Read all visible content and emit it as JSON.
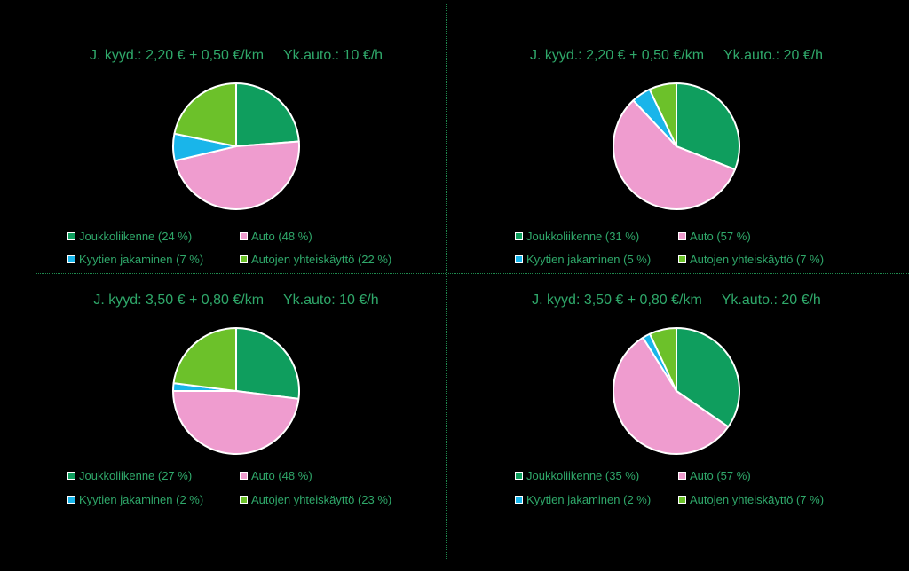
{
  "colors": {
    "joukkoliikenne": "#0f9e5e",
    "auto": "#ef9ccf",
    "kyytien": "#19b5ea",
    "autojen": "#6cc12a",
    "divider": "#1e8a4e",
    "text": "#2fa86a"
  },
  "chart_data": [
    {
      "type": "pie",
      "title": "J. kyyd.: 2,20 € + 0,50 €/km     Yk.auto.: 10 €/h",
      "slices": [
        {
          "label": "Joukkoliikenne (24 %)",
          "value": 24,
          "color": "#0f9e5e"
        },
        {
          "label": "Auto (48 %)",
          "value": 48,
          "color": "#ef9ccf"
        },
        {
          "label": "Kyytien jakaminen (7 %)",
          "value": 7,
          "color": "#19b5ea"
        },
        {
          "label": "Autojen yhteiskäyttö (22 %)",
          "value": 22,
          "color": "#6cc12a"
        }
      ]
    },
    {
      "type": "pie",
      "title": "J. kyyd.: 2,20 € + 0,50 €/km     Yk.auto.: 20 €/h",
      "slices": [
        {
          "label": "Joukkoliikenne (31 %)",
          "value": 31,
          "color": "#0f9e5e"
        },
        {
          "label": "Auto (57 %)",
          "value": 57,
          "color": "#ef9ccf"
        },
        {
          "label": "Kyytien jakaminen (5 %)",
          "value": 5,
          "color": "#19b5ea"
        },
        {
          "label": "Autojen yhteiskäyttö (7 %)",
          "value": 7,
          "color": "#6cc12a"
        }
      ]
    },
    {
      "type": "pie",
      "title": "J. kyyd: 3,50 € + 0,80 €/km     Yk.auto: 10 €/h",
      "slices": [
        {
          "label": "Joukkoliikenne (27 %)",
          "value": 27,
          "color": "#0f9e5e"
        },
        {
          "label": "Auto (48 %)",
          "value": 48,
          "color": "#ef9ccf"
        },
        {
          "label": "Kyytien jakaminen (2 %)",
          "value": 2,
          "color": "#19b5ea"
        },
        {
          "label": "Autojen yhteiskäyttö (23 %)",
          "value": 23,
          "color": "#6cc12a"
        }
      ]
    },
    {
      "type": "pie",
      "title": "J. kyyd: 3,50 € + 0,80 €/km     Yk.auto.: 20 €/h",
      "slices": [
        {
          "label": "Joukkoliikenne (35 %)",
          "value": 35,
          "color": "#0f9e5e"
        },
        {
          "label": "Auto (57 %)",
          "value": 57,
          "color": "#ef9ccf"
        },
        {
          "label": "Kyytien jakaminen (2 %)",
          "value": 2,
          "color": "#19b5ea"
        },
        {
          "label": "Autojen yhteiskäyttö (7 %)",
          "value": 7,
          "color": "#6cc12a"
        }
      ]
    }
  ]
}
